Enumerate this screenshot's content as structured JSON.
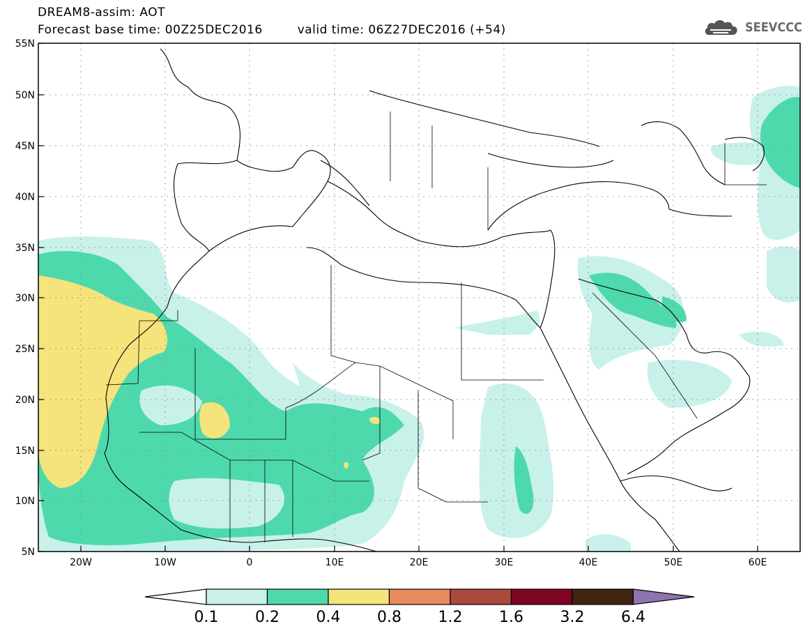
{
  "header": {
    "line1": "DREAM8-assim: AOT",
    "base_label": "Forecast base time: 00Z25DEC2016",
    "valid_label": "valid time: 06Z27DEC2016 (+54)",
    "logo_text": "SEEVCCC",
    "logo_icon": "cloud-icon"
  },
  "map": {
    "lat_labels": [
      "55N",
      "50N",
      "45N",
      "40N",
      "35N",
      "30N",
      "25N",
      "20N",
      "15N",
      "10N",
      "5N"
    ],
    "lon_labels": [
      "20W",
      "10W",
      "0",
      "10E",
      "20E",
      "30E",
      "40E",
      "50E",
      "60E"
    ],
    "lat_values": [
      55,
      50,
      45,
      40,
      35,
      30,
      25,
      20,
      15,
      10,
      5
    ],
    "lon_values": [
      -20,
      -10,
      0,
      10,
      20,
      30,
      40,
      50,
      60
    ],
    "lon_range": [
      -25,
      65
    ],
    "lat_range": [
      5,
      55
    ],
    "grid": "dotted",
    "land_fill": "#ffffff",
    "border_color": "#000000"
  },
  "colorbar": {
    "labels": [
      "0.1",
      "0.2",
      "0.4",
      "0.8",
      "1.2",
      "1.6",
      "3.2",
      "6.4"
    ],
    "colors": [
      "#c8f1ea",
      "#4ed9ad",
      "#f5e37c",
      "#e98a61",
      "#a94a3c",
      "#7d0521",
      "#3f2511",
      "#8f74b0"
    ],
    "under_color": "#ffffff"
  }
}
